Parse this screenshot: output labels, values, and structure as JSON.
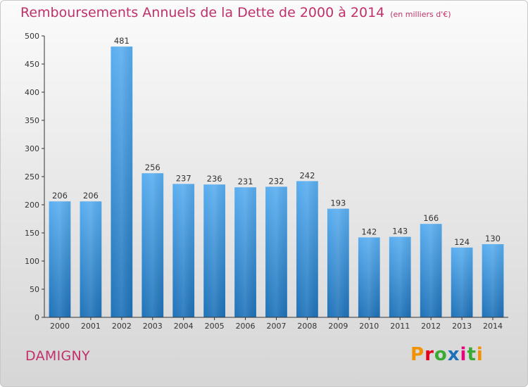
{
  "title": "Remboursements Annuels de la Dette de 2000 à 2014",
  "subtitle": "(en milliers d'€)",
  "city": "DAMIGNY",
  "brand": {
    "letters": [
      "P",
      "r",
      "o",
      "x",
      "i",
      "t",
      "i"
    ],
    "colors": [
      "#f39200",
      "#e2001a",
      "#3aaa35",
      "#1d71b8",
      "#e6007e",
      "#3aaa35",
      "#f39200"
    ]
  },
  "colors": {
    "bar_top": "#5aaef0",
    "bar_bottom": "#1f72b8",
    "title": "#c0306a",
    "axis": "#333333"
  },
  "chart_data": {
    "type": "bar",
    "categories": [
      "2000",
      "2001",
      "2002",
      "2003",
      "2004",
      "2005",
      "2006",
      "2007",
      "2008",
      "2009",
      "2010",
      "2011",
      "2012",
      "2013",
      "2014"
    ],
    "values": [
      206,
      206,
      481,
      256,
      237,
      236,
      231,
      232,
      242,
      193,
      142,
      143,
      166,
      124,
      130
    ],
    "ylim": [
      0,
      500
    ],
    "yticks": [
      0,
      50,
      100,
      150,
      200,
      250,
      300,
      350,
      400,
      450,
      500
    ],
    "grid": false,
    "legend": "none"
  }
}
